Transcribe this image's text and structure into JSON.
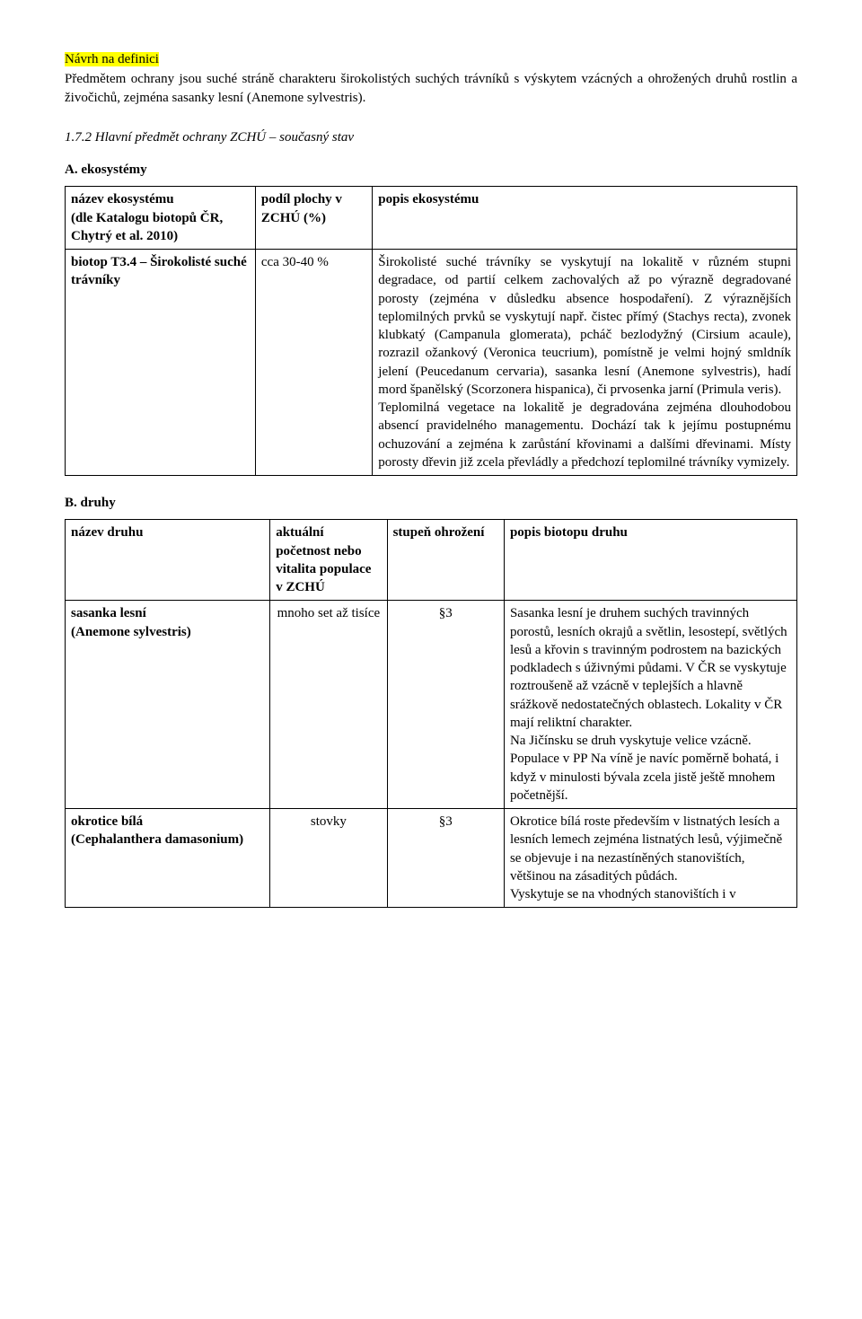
{
  "definition": {
    "title": "Návrh na definici",
    "body": "Předmětem ochrany jsou suché stráně charakteru širokolistých suchých trávníků s výskytem vzácných a ohrožených druhů rostlin a živočichů, zejména sasanky lesní (Anemone sylvestris)."
  },
  "sectionA": {
    "heading": "1.7.2 Hlavní předmět ochrany ZCHÚ – současný stav",
    "subHeading": "A. ekosystémy",
    "headers": {
      "c1": "název ekosystému\n(dle Katalogu biotopů ČR, Chytrý et al. 2010)",
      "c2": "podíl plochy v ZCHÚ (%)",
      "c3": "popis ekosystému"
    },
    "row": {
      "c1": "biotop T3.4 – Širokolisté suché trávníky",
      "c2": "cca 30-40 %",
      "c3": "Širokolisté suché trávníky se vyskytují na lokalitě v různém stupni degradace, od partií celkem zachovalých až po výrazně degradované porosty (zejména v důsledku absence hospodaření). Z výraznějších teplomilných prvků se vyskytují např. čistec přímý (Stachys recta), zvonek klubkatý (Campanula glomerata), pcháč bezlodyžný (Cirsium acaule), rozrazil ožankový (Veronica teucrium), pomístně je velmi hojný smldník jelení (Peucedanum cervaria), sasanka lesní (Anemone sylvestris), hadí mord španělský (Scorzonera hispanica), či prvosenka jarní (Primula veris).\nTeplomilná vegetace na lokalitě je degradována zejména dlouhodobou absencí pravidelného managementu. Dochází tak k jejímu postupnému ochuzování a zejména k zarůstání křovinami a dalšími dřevinami. Místy porosty dřevin již zcela převládly a předchozí teplomilné trávníky vymizely."
    }
  },
  "sectionB": {
    "subHeading": "B. druhy",
    "headers": {
      "c1": "název druhu",
      "c2": "aktuální početnost nebo vitalita populace v ZCHÚ",
      "c3": "stupeň ohrožení",
      "c4": "popis biotopu druhu"
    },
    "rows": [
      {
        "c1": "sasanka lesní\n(Anemone sylvestris)",
        "c2": "mnoho set až tisíce",
        "c3": "§3",
        "c4": "Sasanka lesní je druhem suchých travinných porostů, lesních okrajů a světlin, lesostepí, světlých lesů a křovin s travinným podrostem na bazických podkladech s úživnými půdami. V ČR se vyskytuje roztroušeně až vzácně v teplejších a hlavně srážkově nedostatečných oblastech. Lokality v ČR mají reliktní charakter.\nNa Jičínsku se druh vyskytuje velice vzácně. Populace v PP Na víně je navíc poměrně bohatá, i když v minulosti bývala zcela jistě ještě mnohem početnější."
      },
      {
        "c1": "okrotice bílá\n(Cephalanthera damasonium)",
        "c2": "stovky",
        "c3": "§3",
        "c4": "Okrotice bílá roste především v listnatých lesích a lesních lemech zejména listnatých lesů, výjimečně se objevuje i na nezastíněných stanovištích, většinou na zásaditých půdách.\nVyskytuje se na vhodných stanovištích i v"
      }
    ]
  }
}
